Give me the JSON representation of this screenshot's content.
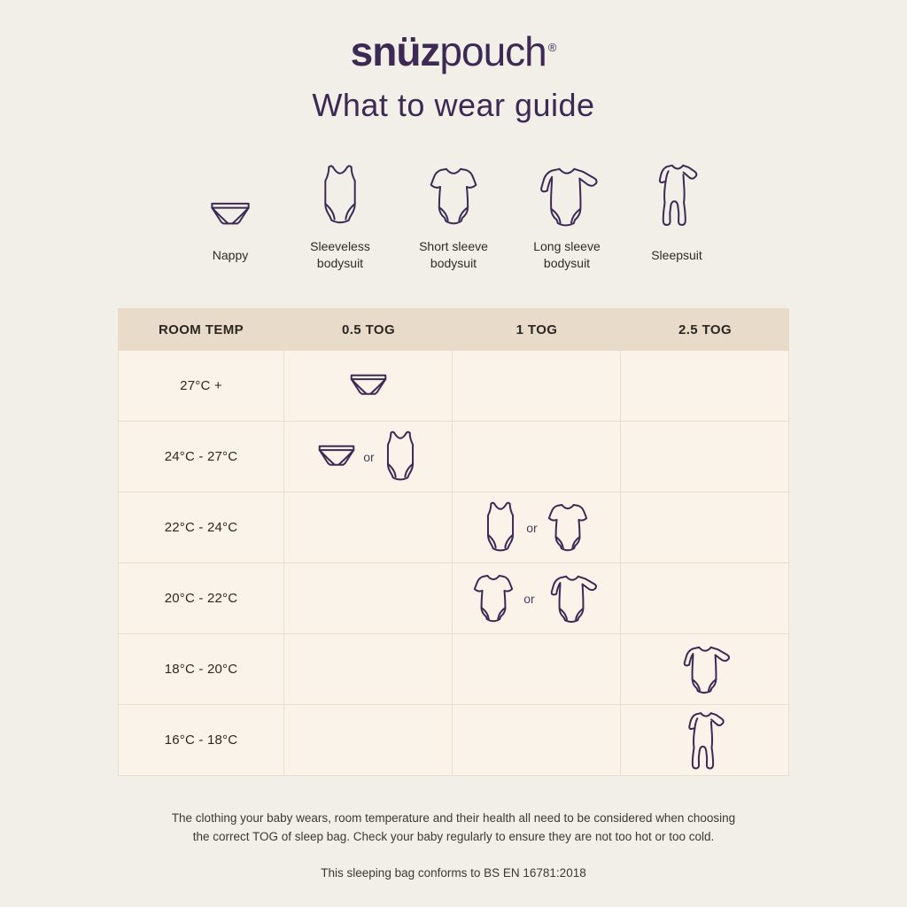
{
  "colors": {
    "background": "#f2efe9",
    "accent_purple": "#3d2a54",
    "table_header_bg": "#e8dbc9",
    "table_cell_bg": "#faf3e9",
    "table_border": "#eadfcb"
  },
  "header": {
    "brand_bold": "snüz",
    "brand_light": "pouch",
    "registered_mark": "®",
    "title": "What to wear guide"
  },
  "legend": [
    {
      "icon": "nappy-icon",
      "key": "nappy",
      "label": "Nappy"
    },
    {
      "icon": "sleeveless-bodysuit-icon",
      "key": "sleeveless-bodysuit",
      "label": "Sleeveless bodysuit"
    },
    {
      "icon": "short-sleeve-bodysuit-icon",
      "key": "short-sleeve-bodysuit",
      "label": "Short sleeve bodysuit"
    },
    {
      "icon": "long-sleeve-bodysuit-icon",
      "key": "long-sleeve-bodysuit",
      "label": "Long sleeve bodysuit"
    },
    {
      "icon": "sleepsuit-icon",
      "key": "sleepsuit",
      "label": "Sleepsuit"
    }
  ],
  "table": {
    "headers": [
      "ROOM TEMP",
      "0.5 TOG",
      "1 TOG",
      "2.5 TOG"
    ],
    "or_label": "or",
    "rows": [
      {
        "room_temp": "27°C +",
        "tog": "0.5 TOG",
        "clothing": [
          "nappy"
        ]
      },
      {
        "room_temp": "24°C - 27°C",
        "tog": "0.5 TOG",
        "clothing": [
          "nappy",
          "sleeveless-bodysuit"
        ]
      },
      {
        "room_temp": "22°C - 24°C",
        "tog": "1 TOG",
        "clothing": [
          "sleeveless-bodysuit",
          "short-sleeve-bodysuit"
        ]
      },
      {
        "room_temp": "20°C - 22°C",
        "tog": "1 TOG",
        "clothing": [
          "short-sleeve-bodysuit",
          "long-sleeve-bodysuit"
        ]
      },
      {
        "room_temp": "18°C - 20°C",
        "tog": "2.5 TOG",
        "clothing": [
          "long-sleeve-bodysuit"
        ]
      },
      {
        "room_temp": "16°C - 18°C",
        "tog": "2.5 TOG",
        "clothing": [
          "sleepsuit"
        ]
      }
    ]
  },
  "footer": {
    "note": "The clothing your baby wears, room temperature and their health all need to be considered when choosing the correct TOG of sleep bag. Check your baby regularly to ensure they are not too hot or too cold.",
    "conformity": "This sleeping bag conforms to BS EN 16781:2018"
  }
}
